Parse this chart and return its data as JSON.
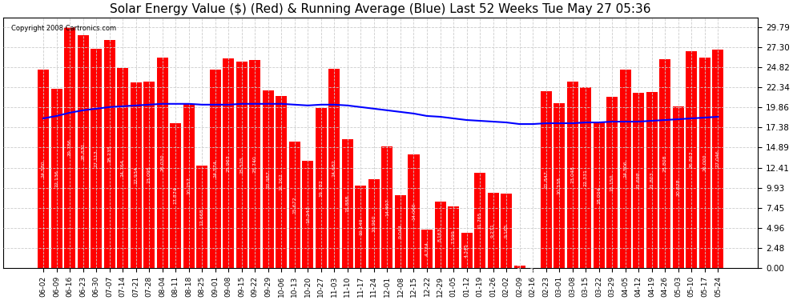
{
  "title": "Solar Energy Value ($) (Red) & Running Average (Blue) Last 52 Weeks Tue May 27 05:36",
  "copyright": "Copyright 2008 Cartronics.com",
  "bar_color": "#ff0000",
  "line_color": "#0000ff",
  "background_color": "#ffffff",
  "plot_bg_color": "#ffffff",
  "grid_color": "#cccccc",
  "categories": [
    "06-02",
    "06-09",
    "06-16",
    "06-23",
    "06-30",
    "07-07",
    "07-14",
    "07-21",
    "07-28",
    "08-04",
    "08-11",
    "08-18",
    "08-25",
    "09-01",
    "09-08",
    "09-15",
    "09-22",
    "09-29",
    "10-06",
    "10-13",
    "10-20",
    "10-27",
    "11-03",
    "11-10",
    "11-17",
    "11-24",
    "12-01",
    "12-08",
    "12-15",
    "12-22",
    "12-29",
    "01-05",
    "01-12",
    "01-19",
    "01-26",
    "02-02",
    "02-09",
    "02-16",
    "02-23",
    "03-01",
    "03-08",
    "03-15",
    "03-22",
    "03-29",
    "04-05",
    "04-12",
    "04-19",
    "04-26",
    "05-03",
    "05-10",
    "05-17",
    "05-24"
  ],
  "values": [
    24.58,
    22.136,
    29.786,
    28.831,
    27.113,
    28.235,
    24.764,
    22.934,
    23.095,
    26.03,
    17.874,
    20.257,
    12.668,
    24.574,
    25.963,
    25.525,
    25.74,
    21.987,
    21.262,
    15.672,
    13.247,
    19.782,
    24.682,
    15.888,
    10.14,
    10.96,
    14.997,
    9.044,
    14.06,
    4.724,
    8.163,
    7.599,
    4.345,
    11.765,
    9.271,
    9.165,
    0.317,
    0.0,
    21.847,
    20.338,
    23.048,
    22.331,
    18.004,
    21.15,
    24.506,
    21.698,
    21.803,
    25.808,
    20.028,
    26.863,
    26.0,
    27.046
  ],
  "running_avg": [
    18.5,
    18.8,
    19.2,
    19.5,
    19.7,
    19.9,
    20.0,
    20.1,
    20.2,
    20.3,
    20.3,
    20.3,
    20.2,
    20.2,
    20.2,
    20.3,
    20.3,
    20.3,
    20.3,
    20.2,
    20.1,
    20.2,
    20.2,
    20.1,
    19.9,
    19.7,
    19.5,
    19.3,
    19.1,
    18.8,
    18.7,
    18.5,
    18.3,
    18.2,
    18.1,
    18.0,
    17.8,
    17.8,
    17.9,
    17.9,
    17.9,
    18.0,
    18.0,
    18.1,
    18.1,
    18.1,
    18.2,
    18.3,
    18.4,
    18.5,
    18.6,
    18.7
  ],
  "yticks": [
    0.0,
    2.48,
    4.96,
    7.45,
    9.93,
    12.41,
    14.89,
    17.38,
    19.86,
    22.34,
    24.82,
    27.3,
    29.79
  ],
  "ylim": [
    0,
    31.0
  ],
  "title_fontsize": 11,
  "label_fontsize": 6.5,
  "tick_fontsize": 7.5
}
